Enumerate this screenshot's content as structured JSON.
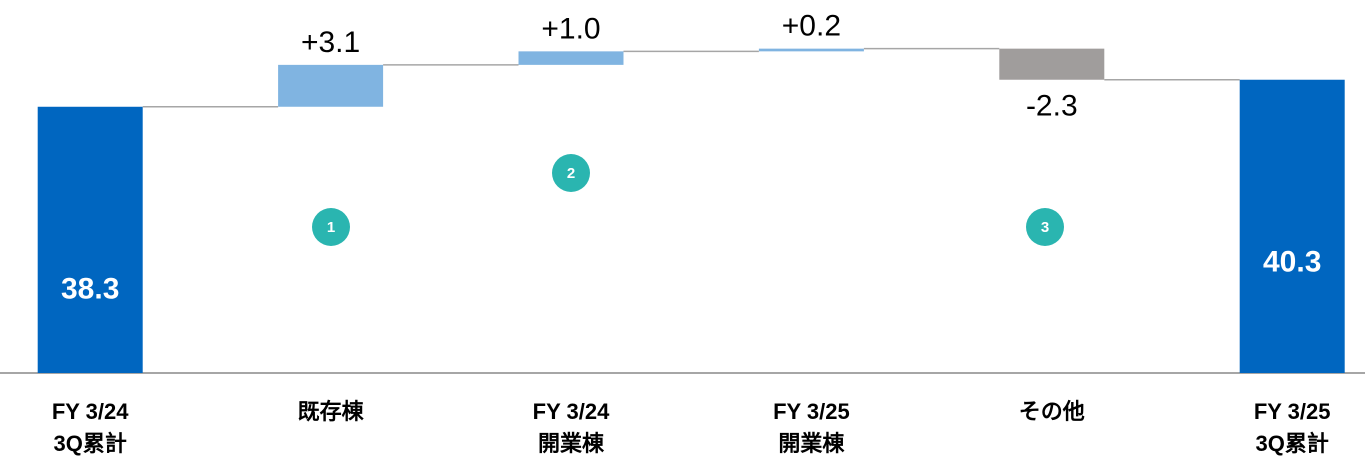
{
  "chart_data": {
    "type": "waterfall",
    "categories": [
      [
        "FY 3/24",
        "3Q累計"
      ],
      [
        "既存棟"
      ],
      [
        "FY 3/24",
        "開業棟"
      ],
      [
        "FY 3/25",
        "開業棟"
      ],
      [
        "その他"
      ],
      [
        "FY 3/25",
        "3Q累計"
      ]
    ],
    "values": [
      38.3,
      3.1,
      1.0,
      0.2,
      -2.3,
      40.3
    ],
    "value_labels": [
      "38.3",
      "+3.1",
      "+1.0",
      "+0.2",
      "-2.3",
      "40.3"
    ],
    "measure": [
      "total",
      "relative",
      "relative",
      "relative",
      "relative",
      "total"
    ],
    "colors": {
      "total": "#0066c0",
      "increase": "#80b4e1",
      "decrease": "#a09d9c"
    },
    "connector_color": "#a6a6a6",
    "annotations": [
      "1",
      "2",
      "3"
    ],
    "annotation_color": "#2ab5b0",
    "ylim": [
      18.6,
      46.2
    ]
  }
}
